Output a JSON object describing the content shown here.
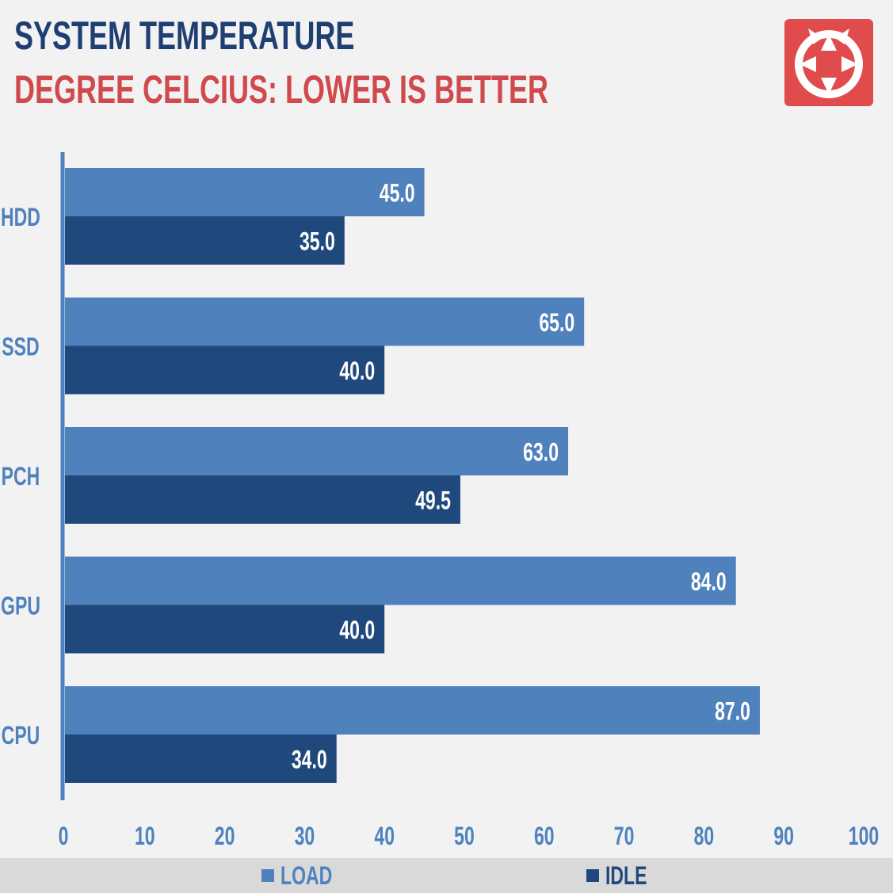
{
  "header": {
    "title": "SYSTEM TEMPERATURE",
    "subtitle": "DEGREE CELCIUS: LOWER IS BETTER"
  },
  "logo": {
    "icon": "camera-aperture-icon",
    "color": "#e04c4c"
  },
  "legend": {
    "load_label": "LOAD",
    "idle_label": "IDLE"
  },
  "colors": {
    "load": "#4f81bd",
    "idle": "#1f497d",
    "axis": "#4f81bd",
    "title": "#1f3f73",
    "subtitle": "#d0494d",
    "tick_label": "#4f81bd",
    "legend_bg": "#d9d9d9"
  },
  "chart_data": {
    "type": "bar",
    "orientation": "horizontal",
    "title": "SYSTEM TEMPERATURE",
    "subtitle": "DEGREE CELCIUS: LOWER IS BETTER",
    "categories": [
      "HDD",
      "SSD",
      "PCH",
      "GPU",
      "CPU"
    ],
    "series": [
      {
        "name": "LOAD",
        "values": [
          45.0,
          65.0,
          63.0,
          84.0,
          87.0
        ],
        "labels": [
          "45.0",
          "65.0",
          "63.0",
          "84.0",
          "87.0"
        ]
      },
      {
        "name": "IDLE",
        "values": [
          35.0,
          40.0,
          49.5,
          40.0,
          34.0
        ],
        "labels": [
          "35.0",
          "40.0",
          "49.5",
          "40.0",
          "34.0"
        ]
      }
    ],
    "xlim": [
      0,
      100
    ],
    "xticks": [
      0,
      10,
      20,
      30,
      40,
      50,
      60,
      70,
      80,
      90,
      100
    ],
    "grid": false,
    "legend_position": "bottom"
  }
}
